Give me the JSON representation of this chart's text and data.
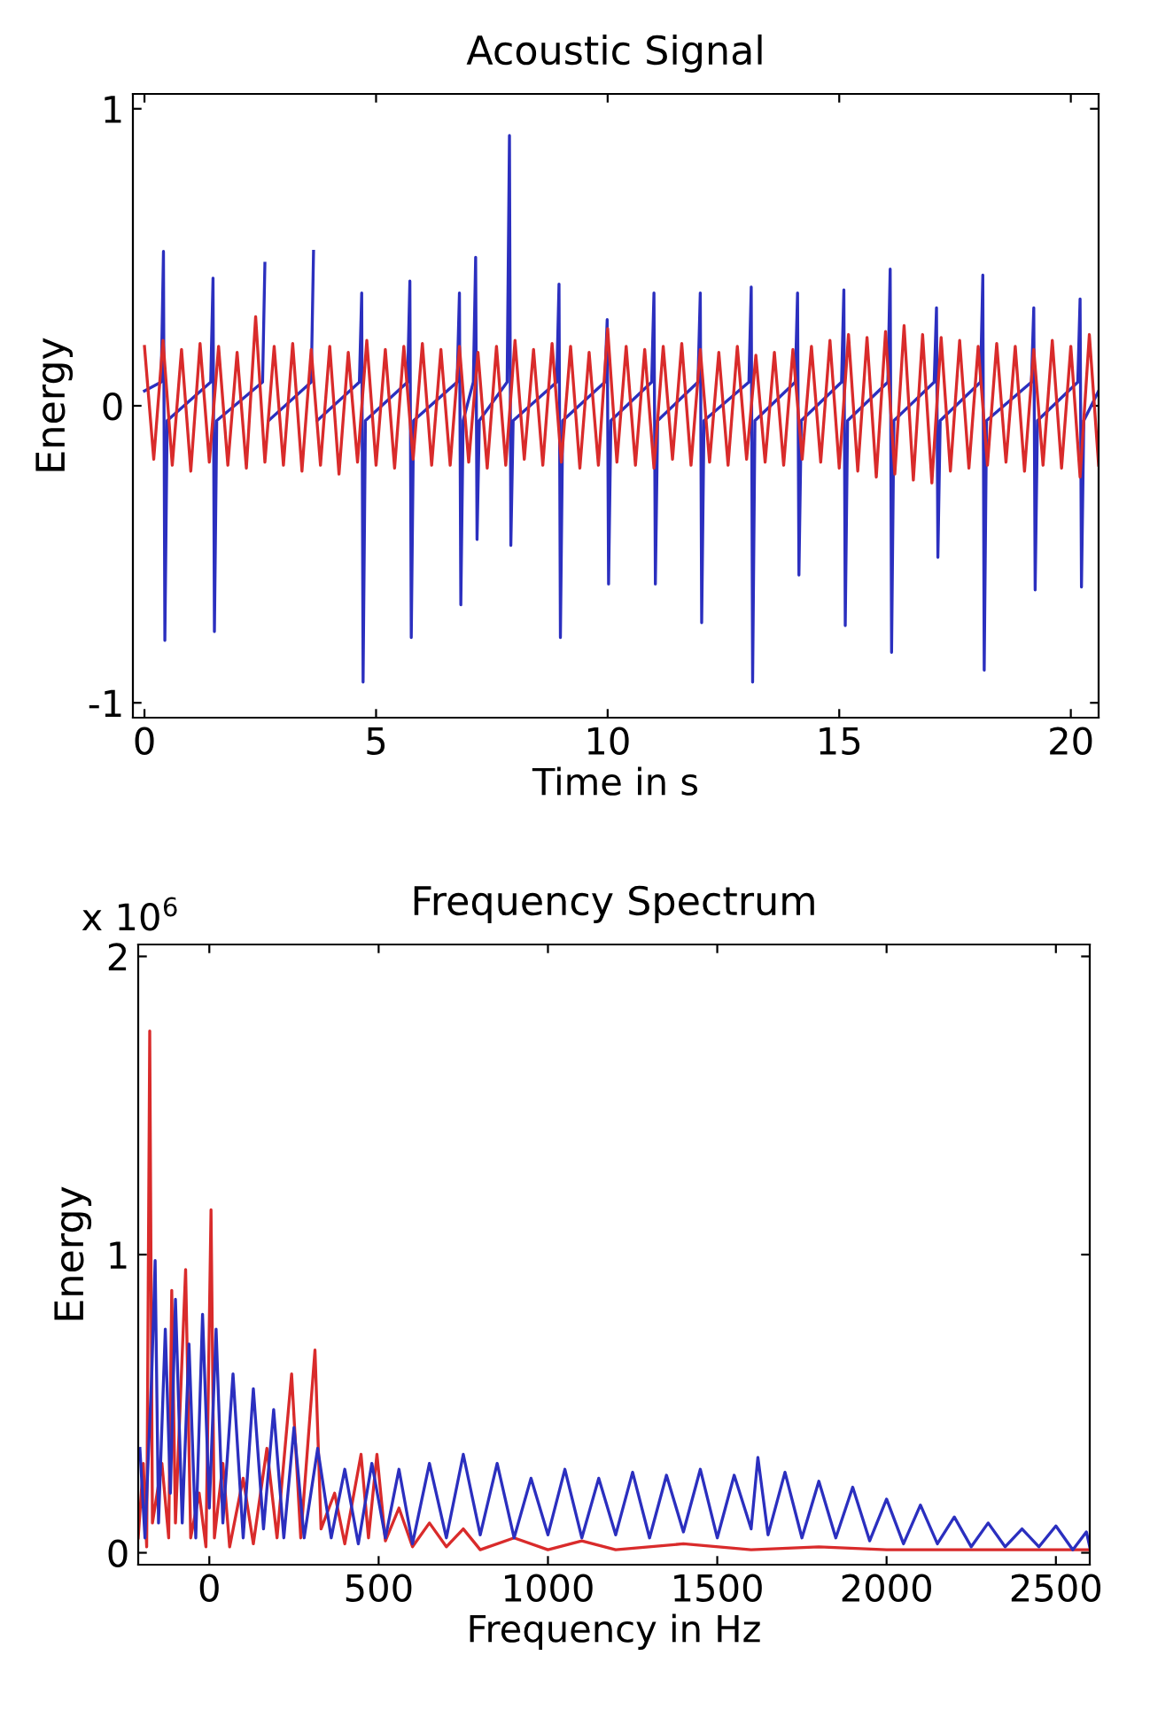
{
  "chart_data": [
    {
      "type": "line",
      "title": "Acoustic Signal",
      "xlabel": "Time in s",
      "ylabel": "Energy",
      "xlim": [
        -0.25,
        20.6
      ],
      "xticks": [
        0,
        5,
        10,
        15,
        20
      ],
      "ylim": [
        -1.05,
        1.05
      ],
      "yticks": [
        -1,
        0,
        1
      ],
      "grid": false,
      "series": [
        {
          "color": "#2b2fbf",
          "x": [
            0.0,
            0.36,
            0.41,
            0.44,
            0.49,
            1.43,
            1.48,
            1.51,
            1.56,
            2.55,
            2.6,
            2.63,
            2.68,
            3.6,
            3.65,
            3.68,
            3.73,
            4.64,
            4.69,
            4.72,
            4.77,
            5.68,
            5.73,
            5.76,
            5.81,
            6.75,
            6.8,
            6.83,
            6.88,
            7.1,
            7.15,
            7.18,
            7.23,
            7.83,
            7.88,
            7.91,
            7.96,
            8.9,
            8.95,
            8.98,
            9.03,
            9.94,
            9.99,
            10.02,
            10.07,
            10.95,
            11.0,
            11.03,
            11.08,
            11.95,
            12.0,
            12.03,
            12.08,
            13.05,
            13.1,
            13.13,
            13.18,
            14.05,
            14.1,
            14.13,
            14.18,
            15.05,
            15.1,
            15.13,
            15.18,
            16.05,
            16.1,
            16.13,
            16.18,
            17.05,
            17.1,
            17.13,
            17.18,
            18.05,
            18.1,
            18.13,
            18.18,
            19.15,
            19.2,
            19.23,
            19.28,
            20.15,
            20.2,
            20.23,
            20.28,
            20.6
          ],
          "values": [
            0.05,
            0.08,
            0.52,
            -0.79,
            -0.05,
            0.08,
            0.43,
            -0.76,
            -0.05,
            0.08,
            0.48,
            null,
            -0.05,
            0.08,
            0.52,
            null,
            -0.05,
            0.08,
            0.38,
            -0.93,
            -0.05,
            0.08,
            0.42,
            -0.78,
            -0.05,
            0.08,
            0.38,
            -0.67,
            -0.05,
            0.08,
            0.5,
            -0.45,
            -0.05,
            0.08,
            0.91,
            -0.47,
            -0.05,
            0.08,
            0.41,
            -0.78,
            -0.05,
            0.08,
            0.29,
            -0.6,
            -0.05,
            0.08,
            0.38,
            -0.6,
            -0.05,
            0.08,
            0.38,
            -0.73,
            -0.05,
            0.08,
            0.4,
            -0.93,
            -0.05,
            0.08,
            0.38,
            -0.57,
            -0.05,
            0.08,
            0.39,
            -0.74,
            -0.05,
            0.08,
            0.46,
            -0.83,
            -0.05,
            0.08,
            0.33,
            -0.51,
            -0.05,
            0.08,
            0.44,
            -0.89,
            -0.05,
            0.08,
            0.33,
            -0.62,
            -0.05,
            0.08,
            0.36,
            -0.61,
            -0.05,
            0.05
          ]
        },
        {
          "color": "#d92b2b",
          "x": [
            0.0,
            0.2,
            0.4,
            0.6,
            0.8,
            1.0,
            1.2,
            1.4,
            1.6,
            1.8,
            2.0,
            2.2,
            2.4,
            2.6,
            2.8,
            3.0,
            3.2,
            3.4,
            3.6,
            3.8,
            4.0,
            4.2,
            4.4,
            4.6,
            4.8,
            5.0,
            5.2,
            5.4,
            5.6,
            5.8,
            6.0,
            6.2,
            6.4,
            6.6,
            6.8,
            7.0,
            7.2,
            7.4,
            7.6,
            7.8,
            8.0,
            8.2,
            8.4,
            8.6,
            8.8,
            9.0,
            9.2,
            9.4,
            9.6,
            9.8,
            10.0,
            10.2,
            10.4,
            10.6,
            10.8,
            11.0,
            11.2,
            11.4,
            11.6,
            11.8,
            12.0,
            12.2,
            12.4,
            12.6,
            12.8,
            13.0,
            13.2,
            13.4,
            13.6,
            13.8,
            14.0,
            14.2,
            14.4,
            14.6,
            14.8,
            15.0,
            15.2,
            15.4,
            15.6,
            15.8,
            16.0,
            16.2,
            16.4,
            16.6,
            16.8,
            17.0,
            17.2,
            17.4,
            17.6,
            17.8,
            18.0,
            18.2,
            18.4,
            18.6,
            18.8,
            19.0,
            19.2,
            19.4,
            19.6,
            19.8,
            20.0,
            20.2,
            20.4,
            20.6
          ],
          "values": [
            0.2,
            -0.18,
            0.22,
            -0.2,
            0.19,
            -0.22,
            0.21,
            -0.19,
            0.2,
            -0.2,
            0.18,
            -0.21,
            0.3,
            -0.19,
            0.2,
            -0.2,
            0.21,
            -0.22,
            0.19,
            -0.2,
            0.2,
            -0.23,
            0.18,
            -0.19,
            0.22,
            -0.2,
            0.19,
            -0.21,
            0.2,
            -0.18,
            0.21,
            -0.2,
            0.19,
            -0.2,
            0.2,
            -0.19,
            0.18,
            -0.21,
            0.2,
            -0.2,
            0.22,
            -0.18,
            0.19,
            -0.2,
            0.21,
            -0.19,
            0.2,
            -0.21,
            0.18,
            -0.2,
            0.26,
            -0.19,
            0.2,
            -0.2,
            0.19,
            -0.21,
            0.2,
            -0.18,
            0.21,
            -0.2,
            0.19,
            -0.19,
            0.18,
            -0.2,
            0.2,
            -0.18,
            0.17,
            -0.19,
            0.18,
            -0.2,
            0.19,
            -0.18,
            0.2,
            -0.19,
            0.22,
            -0.21,
            0.24,
            -0.22,
            0.23,
            -0.24,
            0.25,
            -0.23,
            0.27,
            -0.25,
            0.24,
            -0.26,
            0.23,
            -0.22,
            0.22,
            -0.21,
            0.2,
            -0.2,
            0.21,
            -0.19,
            0.2,
            -0.22,
            0.19,
            -0.2,
            0.22,
            -0.21,
            0.2,
            -0.24,
            0.24,
            -0.2
          ]
        }
      ]
    },
    {
      "type": "line",
      "title": "Frequency Spectrum",
      "xlabel": "Frequency in Hz",
      "ylabel": "Energy",
      "annotations": [
        "x 10$^{6}$"
      ],
      "xlim": [
        -210,
        2600
      ],
      "xticks": [
        0,
        500,
        1000,
        1500,
        2000,
        2500
      ],
      "ylim": [
        -0.04,
        2.04
      ],
      "yticks": [
        0,
        1,
        2
      ],
      "grid": false,
      "series": [
        {
          "color": "#d92b2b",
          "x": [
            -210,
            -195,
            -185,
            -176,
            -168,
            -140,
            -120,
            -111,
            -100,
            -70,
            -55,
            -30,
            -10,
            5,
            15,
            40,
            60,
            100,
            130,
            170,
            200,
            243,
            270,
            312,
            330,
            370,
            400,
            448,
            470,
            495,
            520,
            560,
            600,
            650,
            700,
            750,
            800,
            900,
            1000,
            1100,
            1200,
            1400,
            1600,
            1800,
            2000,
            2300,
            2600
          ],
          "values": [
            0.05,
            0.3,
            0.02,
            1.75,
            0.1,
            0.3,
            0.05,
            0.88,
            0.1,
            0.95,
            0.05,
            0.2,
            0.02,
            1.15,
            0.05,
            0.3,
            0.02,
            0.25,
            0.03,
            0.35,
            0.05,
            0.6,
            0.05,
            0.68,
            0.08,
            0.2,
            0.03,
            0.33,
            0.05,
            0.33,
            0.04,
            0.15,
            0.02,
            0.1,
            0.02,
            0.08,
            0.01,
            0.05,
            0.01,
            0.04,
            0.01,
            0.03,
            0.01,
            0.02,
            0.01,
            0.01,
            0.01
          ]
        },
        {
          "color": "#2b2fbf",
          "x": [
            -205,
            -190,
            -170,
            -160,
            -150,
            -130,
            -115,
            -100,
            -80,
            -60,
            -40,
            -20,
            0,
            20,
            40,
            70,
            100,
            130,
            160,
            190,
            220,
            250,
            280,
            320,
            360,
            400,
            440,
            480,
            520,
            560,
            600,
            650,
            700,
            750,
            800,
            850,
            900,
            950,
            1000,
            1050,
            1100,
            1150,
            1200,
            1250,
            1300,
            1350,
            1400,
            1450,
            1500,
            1550,
            1600,
            1620,
            1650,
            1700,
            1750,
            1800,
            1850,
            1900,
            1950,
            2000,
            2050,
            2100,
            2150,
            2200,
            2250,
            2300,
            2350,
            2400,
            2450,
            2500,
            2550,
            2590,
            2600
          ],
          "values": [
            0.35,
            0.05,
            0.6,
            0.98,
            0.1,
            0.75,
            0.2,
            0.85,
            0.1,
            0.7,
            0.05,
            0.8,
            0.15,
            0.75,
            0.1,
            0.6,
            0.05,
            0.55,
            0.08,
            0.48,
            0.05,
            0.42,
            0.05,
            0.35,
            0.05,
            0.28,
            0.03,
            0.3,
            0.05,
            0.28,
            0.03,
            0.3,
            0.05,
            0.33,
            0.06,
            0.3,
            0.05,
            0.25,
            0.06,
            0.28,
            0.05,
            0.25,
            0.06,
            0.27,
            0.05,
            0.26,
            0.07,
            0.28,
            0.05,
            0.26,
            0.08,
            0.32,
            0.06,
            0.27,
            0.05,
            0.24,
            0.05,
            0.22,
            0.04,
            0.18,
            0.03,
            0.16,
            0.03,
            0.12,
            0.02,
            0.1,
            0.02,
            0.08,
            0.02,
            0.09,
            0.01,
            0.07,
            0.02
          ]
        }
      ]
    }
  ]
}
